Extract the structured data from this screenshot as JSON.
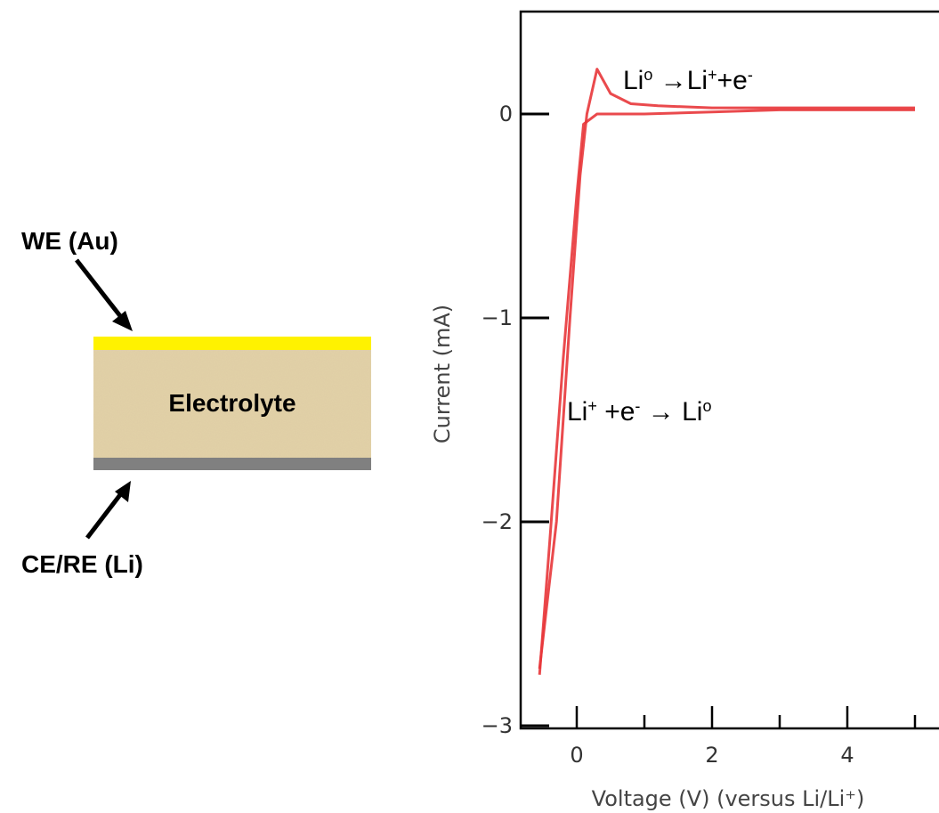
{
  "diagram": {
    "we_label": "WE (Au)",
    "electrolyte_label": "Electrolyte",
    "ce_label": "CE/RE (Li)",
    "colors": {
      "gold": "#FFF200",
      "electrolyte": "#E3D2A8",
      "lithium": "#808080",
      "arrow": "#000000"
    }
  },
  "chart_data": {
    "type": "line",
    "title": "",
    "xlabel": "Voltage (V) (versus Li/Li⁺)",
    "ylabel": "Current (mA)",
    "xlim": [
      -0.6,
      5.1
    ],
    "ylim": [
      -3,
      0.4
    ],
    "x_ticks": [
      0,
      2,
      4
    ],
    "y_ticks": [
      0,
      -1,
      -2,
      -3
    ],
    "line_color": "#E8363A",
    "series": [
      {
        "x": [
          -0.55,
          -0.3,
          -0.1,
          0.05,
          0.15,
          0.3,
          0.5,
          0.8,
          1.2,
          2.0,
          3.0,
          4.0,
          5.0
        ],
        "values": [
          -2.72,
          -2.0,
          -1.0,
          -0.3,
          0.0,
          0.22,
          0.1,
          0.05,
          0.04,
          0.03,
          0.03,
          0.03,
          0.03
        ]
      },
      {
        "x": [
          5.0,
          4.0,
          3.0,
          2.0,
          1.0,
          0.3,
          0.1,
          0.0,
          -0.2,
          -0.4,
          -0.55
        ],
        "values": [
          0.02,
          0.02,
          0.02,
          0.01,
          0.0,
          0.0,
          -0.05,
          -0.4,
          -1.2,
          -2.1,
          -2.75
        ]
      }
    ],
    "annotations": {
      "oxidation": {
        "base": "Li",
        "sup1": "o",
        "arrow": "→",
        "base2": "Li",
        "sup2": "+",
        "mid": "+e",
        "sup3": "-"
      },
      "reduction": {
        "base": "Li",
        "sup1": "+",
        "mid": " +e",
        "sup2": "-",
        "arrow": " → ",
        "base2": "Li",
        "sup3": "o"
      }
    }
  }
}
